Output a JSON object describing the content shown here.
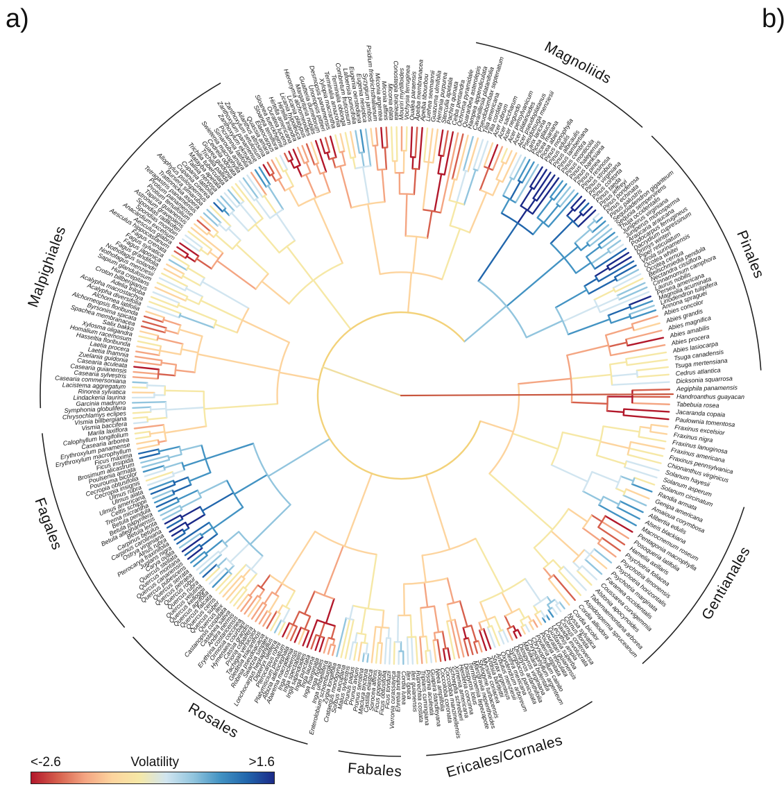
{
  "figure": {
    "panel_a": "a)",
    "panel_b": "b)"
  },
  "legend": {
    "title": "Volatility",
    "min_label": "<-2.6",
    "max_label": ">1.6",
    "gradient_colors": [
      "#b2182b",
      "#d6604d",
      "#f4a582",
      "#fdd49e",
      "#f6e8a6",
      "#d1e5f0",
      "#92c5de",
      "#4393c3",
      "#2166ac",
      "#1b2a88"
    ]
  },
  "clades": [
    {
      "label": "Magnoliids"
    },
    {
      "label": "Pinales"
    },
    {
      "label": "Gentianales"
    },
    {
      "label": "Ericales/Cornales"
    },
    {
      "label": "Fabales"
    },
    {
      "label": "Rosales"
    },
    {
      "label": "Fagales"
    },
    {
      "label": "Malpighiales"
    }
  ],
  "leaves_east": [
    "Abies concolor",
    "Abies grandis",
    "Abies magnifica",
    "Abies amabilis",
    "Abies procera",
    "Abies lasiocarpa",
    "Tsuga canadensis",
    "Tsuga mertensiana",
    "Cedrus atlantica",
    "Dicksonia squarrosa",
    "Aegiphila panamensis",
    "Handroanthus guayacan",
    "Tabebuia rosea",
    "Jacaranda copaia",
    "Paulownia tomentosa",
    "Fraxinus excelsior",
    "Fraxinus nigra",
    "Fraxinus lanuginosa",
    "Fraxinus americana",
    "Fraxinus pennsylvanica",
    "Chionanthus virginicus",
    "Solanum hayesii",
    "Solanum asperum",
    "Solanum circinatum",
    "Randia armata",
    "Genipa americana",
    "Amaioua corymbosa",
    "Alibertia edulis",
    "Alseis blackiana",
    "Macrocnemum roseum",
    "Pentagonia macrophylla",
    "Posoqueria latifolia",
    "Hamelia axillaris",
    "Psychotria foliacea",
    "Psychotria limonensis",
    "Psychotria horizontalis",
    "Psychotria marginata",
    "Faramea occidentalis",
    "Coussarea curvigemmia",
    "Alstonia apocynoides",
    "Tabernaemontana arborea",
    "Aspidosperma spruceanum",
    "Cordia alliodora",
    "Cordia bicolor"
  ],
  "leaves_northeast": [
    "Pseudotsuga menziesii",
    "Larix laricina",
    "Picea glauca",
    "Picea mariana",
    "Picea abies",
    "Pinus monophylla",
    "Pinus edulis",
    "Pinus albicaulis",
    "Pinus lambertiana",
    "Pinus cembra",
    "Pinus monticola",
    "Pinus halepensis",
    "Pinus banksiana",
    "Pinus pinea",
    "Pinus resinosa",
    "Pinus strobus",
    "Pinus virginiana",
    "Pinus contorta",
    "Pinus taeda",
    "Pinus jeffreyi",
    "Pinus ponderosa",
    "Pinus echinata",
    "Pinus palustris",
    "Sequoiadendron giganteum",
    "Sequoia sempervirens",
    "Thuja occidentalis",
    "Juniperus virginiana",
    "Juniperus monosperma",
    "Araucaria araucana",
    "Podocarpus ferrugineus",
    "Dacrydium cupressinum",
    "Drimys winteri",
    "Piper reticulatum",
    "Virola surinamensis",
    "Ocotea whitei",
    "Ocotea cernua",
    "Beilschmiedia pendula",
    "Nectandra cissiflora",
    "Cinnamomum camphora",
    "Laurus nobilis",
    "Persea americana",
    "Magnolia acuminata",
    "Liriodendron tulipifera",
    "Annona spraguei"
  ],
  "leaves_north": [
    "Guatteria dumetorum",
    "Unonopsis pittieri",
    "Desmopsis panamensis",
    "Xylopia macrantha",
    "Terminalia amazonia",
    "Terminalia oblonga",
    "Combretum fruticosum",
    "Lafoensia punicifolia",
    "Eugenia oerstediana",
    "Eugenia nesiotica",
    "Syzygium jambos",
    "Psidium friedrichsthalianum",
    "Miconia argentea",
    "Miconia affinis",
    "Miconia elata",
    "Conostegia bracteata",
    "Mouriri myrtilloides",
    "Vochysia ferruginea",
    "Qualea paraensis",
    "Apeiba membranacea",
    "Apeiba tibourbou",
    "Luehea seemannii",
    "Guazuma ulmifolia",
    "Herrania purpurea",
    "Sterculia apetala",
    "Pachira quinata",
    "Ceiba pentandra",
    "Ochroma pyramidale",
    "Quararibea asterolepis",
    "Hampea appendiculata",
    "Cavanillesia platanifolia",
    "Pseudobombax septenatum",
    "Tilia americana",
    "Tilia cordata",
    "Acer rubrum",
    "Acer saccharum",
    "Acer negundo",
    "Acer pensylvanicum",
    "Acer platanoides",
    "Acer pseudoplatanus"
  ],
  "leaves_northwest": [
    "Aesculus hippocastanum",
    "Aesculus glabra",
    "Anacardium excelsum",
    "Spondias mombin",
    "Spondias radlkoferi",
    "Astronium graveolens",
    "Tapirira guianensis",
    "Protium tenuifolium",
    "Protium panamense",
    "Tetragastris panamensis",
    "Trattinnickia aspera",
    "Bursera simaruba",
    "Allophylus psilospermus",
    "Cupania cinerea",
    "Cupania latifolia",
    "Talisia nervosa",
    "Matayba apetala",
    "Trichilia tuberculata",
    "Trichilia pallida",
    "Guarea guidonia",
    "Cedrela odorata",
    "Swietenia macrophylla",
    "Simarouba amara",
    "Picramnia latifolia",
    "Zanthoxylum ekmanii",
    "Zanthoxylum panamense",
    "Zanthoxylum setulosum",
    "Ailanthus altissima",
    "Quassia amara",
    "Elaeocarpus",
    "Sloanea terniflora",
    "Sloanea tuerckheimii",
    "Ouratea lucens",
    "Hirtella americana",
    "Hirtella triandra",
    "Licania hypoleuca",
    "Licania platypus",
    "Hieronyma alchorneoides",
    "Margaritaria nobilis"
  ],
  "leaves_west": [
    "Erythroxylum macrophyllum",
    "Erythroxylum panamense",
    "Casearia arborea",
    "Calophyllum longifolium",
    "Marila laxiflora",
    "Vismia baccifera",
    "Vismia billbergiana",
    "Chrysochlamys eclipes",
    "Symphonia globulifera",
    "Garcinia madruno",
    "Lindackeria laurina",
    "Rinorea sylvatica",
    "Lacistema aggregatum",
    "Casearia commersoniana",
    "Casearia sylvestris",
    "Casearia guianensis",
    "Casearia aculeata",
    "Zuelania guidonia",
    "Laetia thamnia",
    "Laetia procera",
    "Hasseltia floribunda",
    "Homalium racemosum",
    "Xylosma oligandra",
    "Salix bakko",
    "Spachea membranacea",
    "Byrsonima spicata",
    "Alchorneopsis floribunda",
    "Alchornea latifolia",
    "Acalypha diversifolia",
    "Acalypha macrostachya",
    "Adelia triloba",
    "Croton billbergianus",
    "Hura crepitans",
    "Sapium glandulosum",
    "Nothofagus menziesii",
    "Nothofagus solandri",
    "Fagus grandifolia",
    "Fagus japonica",
    "Fagus sylvatica",
    "Fagus crenata"
  ],
  "leaves_southwest": [
    "Castanea sativa",
    "Castanopsis cuspidata",
    "Quercus ilex",
    "Quercus suber",
    "Quercus cerris",
    "Quercus falcata",
    "Quercus agrifolia",
    "Quercus kelloggii",
    "Quercus velutina",
    "Quercus rubra",
    "Quercus robur",
    "Quercus petraea",
    "Quercus serrata",
    "Quercus pubescens",
    "Quercus canariensis",
    "Quercus montana",
    "Quercus stellata",
    "Carya ovata",
    "Juglans nigra",
    "Pterocarya fraxinifolia",
    "Alnus rubra",
    "Ostrya virginiana",
    "Carpinus caroliniana",
    "Carpinus betulus",
    "Betula lenta",
    "Betula alleghaniensis",
    "Betula papyrifera",
    "Betula pendula",
    "Trema micrantha",
    "Celtis schippii",
    "Ulmus americana",
    "Ulmus alata",
    "Ulmus rubra",
    "Cecropia insignis",
    "Cecropia obtusifolia",
    "Pourouma bicolor",
    "Poulsenia armata",
    "Brosimum alicastrum",
    "Ficus insipida",
    "Ficus maxima"
  ],
  "leaves_south": [
    "Ficus tonduzii",
    "Ficus obtusifolia",
    "Ficus popenoei",
    "Sorocea affinis",
    "Castilla elastica",
    "Maclura tinctoria",
    "Prunus serotina",
    "Prunus avium",
    "Prunus padus",
    "Malus sylvestris",
    "Sorbus aucuparia",
    "Crataegus monogyna",
    "Zygia longifolia",
    "Enterolobium schomburgkii",
    "Inga umbellifera",
    "Inga nobilis",
    "Inga marginata",
    "Inga laurina",
    "Inga punctata",
    "Inga sapindoides",
    "Inga spectabilis",
    "Inga cocleensis",
    "Abarema macradenia",
    "Albizia adinocephala",
    "Platymiscium pinnatum",
    "Pterocarpus rohrii",
    "Dipteryx oleifera",
    "Lonchocarpus heptaphyllus",
    "Swartzia simplex",
    "Robinia pseudoacacia",
    "Gleditsia triacanthos",
    "Tachigali versicolor",
    "Prioria copaifera",
    "Cassia grandis",
    "Hymenaea courbaril",
    "Ormosia coccinea",
    "Erythrina costaricensis",
    "Andira inermis"
  ],
  "leaves_southeast": [
    "Nyssa sylvatica",
    "Cornus florida",
    "Cornus controversa",
    "Davidia involucrata",
    "Lecythis ampla",
    "Gustavia superba",
    "Couratari guianensis",
    "Pouteria reticulata",
    "Pouteria stipitata",
    "Chrysophyllum cainito",
    "Chrysophyllum argenteum",
    "Manilkara bidentata",
    "Diospyros virginiana",
    "Diospyros artanthifolia",
    "Symplocos paniculata",
    "Clethra mexicana",
    "Oxydendrum arboreum",
    "Arbutus menziesii",
    "Styrax argenteus",
    "Ardisia bartlettii",
    "Myrsine coriacea",
    "Stylogyne turbacensis",
    "Marcgravia nepenthoides",
    "Ternstroemia tepezapote",
    "Diospyros lotus",
    "Heisteria concinna",
    "Ximenia americana",
    "Schoepfia schreberi",
    "Coccoloba manzinellensis",
    "Coccoloba coronata",
    "Neea amplifolia",
    "Guapira standleyana",
    "Pisonia aculeata",
    "Triplaris cumingiana",
    "Ruprechtia costata",
    "Ilex guianensis",
    "Ilex opaca",
    "Cordia lutea",
    "Ehretia tinifolia",
    "Varronia curassavica"
  ]
}
